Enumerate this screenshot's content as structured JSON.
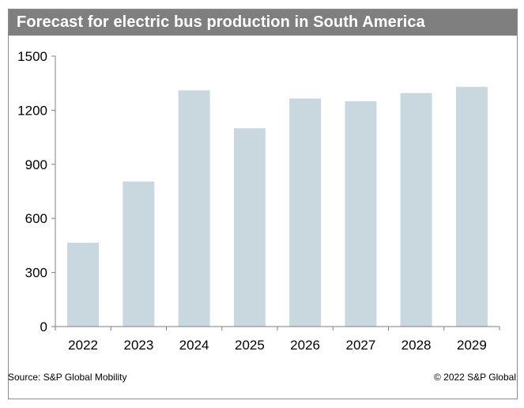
{
  "header": {
    "title": "Forecast for electric bus production in South America"
  },
  "footer": {
    "source": "Source: S&P Global Mobility",
    "copyright": "© 2022 S&P Global"
  },
  "colors": {
    "bar": "#c9d8df",
    "title_bg": "#7f7f7f",
    "axis": "#7f7f7f"
  },
  "chart_data": {
    "type": "bar",
    "title": "Forecast for electric bus production in South America",
    "categories": [
      "2022",
      "2023",
      "2024",
      "2025",
      "2026",
      "2027",
      "2028",
      "2029"
    ],
    "values": [
      465,
      805,
      1310,
      1100,
      1265,
      1250,
      1295,
      1330
    ],
    "ylim": [
      0,
      1500
    ],
    "yticks": [
      0,
      300,
      600,
      900,
      1200,
      1500
    ],
    "xlabel": "",
    "ylabel": "",
    "grid": false,
    "legend": "none"
  }
}
